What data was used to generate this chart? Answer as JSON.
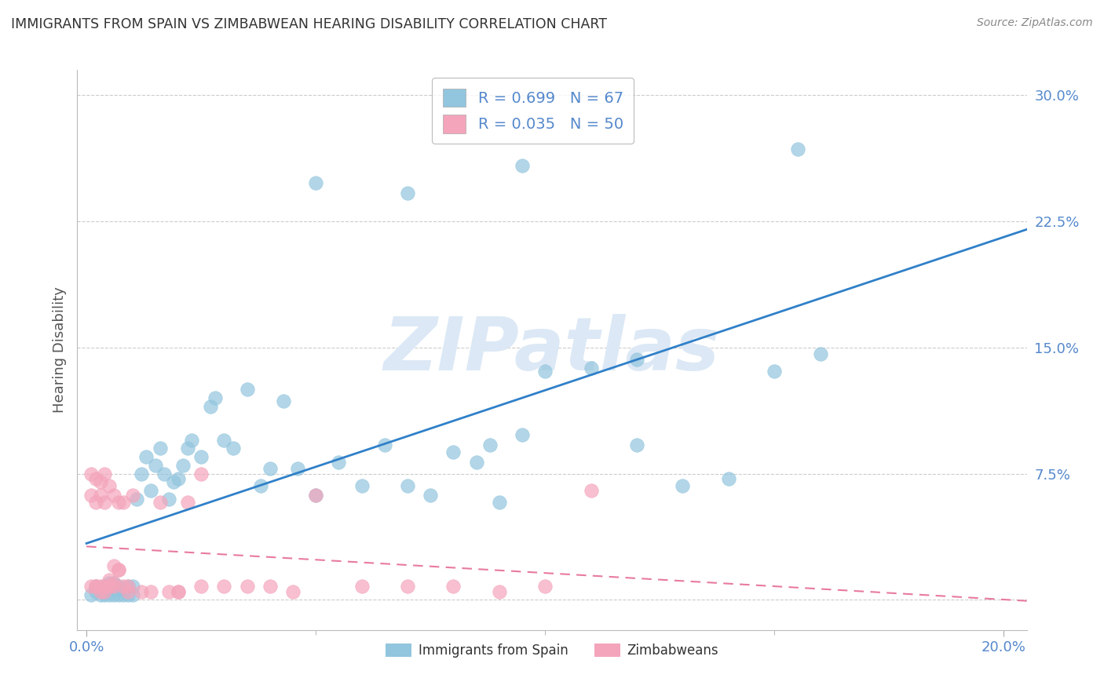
{
  "title": "IMMIGRANTS FROM SPAIN VS ZIMBABWEAN HEARING DISABILITY CORRELATION CHART",
  "source": "Source: ZipAtlas.com",
  "ylabel": "Hearing Disability",
  "ytick_labels": [
    "",
    "7.5%",
    "15.0%",
    "22.5%",
    "30.0%"
  ],
  "ytick_values": [
    0.0,
    0.075,
    0.15,
    0.225,
    0.3
  ],
  "xtick_values": [
    0.0,
    0.2
  ],
  "xtick_labels": [
    "0.0%",
    "20.0%"
  ],
  "xminor_ticks": [
    0.05,
    0.1,
    0.15
  ],
  "xlim": [
    -0.002,
    0.205
  ],
  "ylim": [
    -0.018,
    0.315
  ],
  "legend_blue_label": "Immigrants from Spain",
  "legend_pink_label": "Zimbabweans",
  "blue_color": "#92c5de",
  "pink_color": "#f4a5bb",
  "blue_line_color": "#3080c8",
  "pink_line_color": "#e87aa0",
  "background_color": "#ffffff",
  "grid_color": "#cccccc",
  "title_color": "#333333",
  "tick_label_color": "#5588cc",
  "watermark_color": "#dce8f5",
  "blue_scatter_x": [
    0.001,
    0.002,
    0.002,
    0.003,
    0.003,
    0.004,
    0.004,
    0.005,
    0.005,
    0.005,
    0.006,
    0.006,
    0.006,
    0.007,
    0.007,
    0.008,
    0.008,
    0.009,
    0.009,
    0.01,
    0.01,
    0.011,
    0.012,
    0.013,
    0.014,
    0.015,
    0.016,
    0.017,
    0.018,
    0.019,
    0.02,
    0.021,
    0.022,
    0.023,
    0.025,
    0.027,
    0.028,
    0.03,
    0.032,
    0.035,
    0.038,
    0.04,
    0.043,
    0.046,
    0.05,
    0.055,
    0.06,
    0.065,
    0.07,
    0.075,
    0.08,
    0.085,
    0.088,
    0.09,
    0.095,
    0.1,
    0.11,
    0.12,
    0.13,
    0.14,
    0.15,
    0.16,
    0.05,
    0.095,
    0.12,
    0.07,
    0.155
  ],
  "blue_scatter_y": [
    0.003,
    0.005,
    0.008,
    0.003,
    0.006,
    0.003,
    0.008,
    0.003,
    0.006,
    0.01,
    0.003,
    0.006,
    0.01,
    0.003,
    0.008,
    0.003,
    0.006,
    0.003,
    0.008,
    0.003,
    0.008,
    0.06,
    0.075,
    0.085,
    0.065,
    0.08,
    0.09,
    0.075,
    0.06,
    0.07,
    0.072,
    0.08,
    0.09,
    0.095,
    0.085,
    0.115,
    0.12,
    0.095,
    0.09,
    0.125,
    0.068,
    0.078,
    0.118,
    0.078,
    0.062,
    0.082,
    0.068,
    0.092,
    0.068,
    0.062,
    0.088,
    0.082,
    0.092,
    0.058,
    0.098,
    0.136,
    0.138,
    0.092,
    0.068,
    0.072,
    0.136,
    0.146,
    0.248,
    0.258,
    0.143,
    0.242,
    0.268
  ],
  "pink_scatter_x": [
    0.001,
    0.001,
    0.001,
    0.002,
    0.002,
    0.002,
    0.003,
    0.003,
    0.003,
    0.004,
    0.004,
    0.004,
    0.005,
    0.005,
    0.006,
    0.006,
    0.006,
    0.007,
    0.007,
    0.008,
    0.008,
    0.009,
    0.01,
    0.012,
    0.014,
    0.016,
    0.018,
    0.02,
    0.022,
    0.025,
    0.03,
    0.035,
    0.04,
    0.045,
    0.05,
    0.06,
    0.07,
    0.08,
    0.09,
    0.1,
    0.003,
    0.005,
    0.007,
    0.009,
    0.02,
    0.025,
    0.11,
    0.002,
    0.004,
    0.006
  ],
  "pink_scatter_y": [
    0.008,
    0.062,
    0.075,
    0.008,
    0.058,
    0.072,
    0.008,
    0.062,
    0.07,
    0.008,
    0.058,
    0.075,
    0.008,
    0.068,
    0.008,
    0.062,
    0.02,
    0.018,
    0.058,
    0.008,
    0.058,
    0.005,
    0.062,
    0.005,
    0.005,
    0.058,
    0.005,
    0.005,
    0.058,
    0.008,
    0.008,
    0.008,
    0.008,
    0.005,
    0.062,
    0.008,
    0.008,
    0.008,
    0.005,
    0.008,
    0.005,
    0.012,
    0.018,
    0.008,
    0.005,
    0.075,
    0.065,
    0.008,
    0.005,
    0.01
  ]
}
